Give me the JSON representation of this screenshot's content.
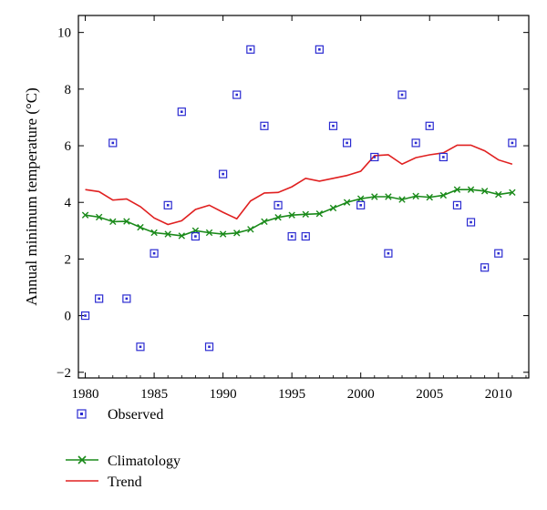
{
  "chart_data": {
    "type": "line",
    "title": "",
    "xlabel": "",
    "ylabel": "Annual minimum temperature (°C)",
    "xlim": [
      1979.5,
      2012.2
    ],
    "ylim": [
      -2.2,
      10.6
    ],
    "x_ticks": [
      1980,
      1985,
      1990,
      1995,
      2000,
      2005,
      2010
    ],
    "y_ticks": [
      -2,
      0,
      2,
      4,
      6,
      8,
      10
    ],
    "grid": false,
    "legend_position": "bottom-left",
    "colors": {
      "observed": "#2b2bd1",
      "climatology": "#1a8a1a",
      "trend": "#e02020"
    },
    "x": [
      1980,
      1981,
      1982,
      1983,
      1984,
      1985,
      1986,
      1987,
      1988,
      1989,
      1990,
      1991,
      1992,
      1993,
      1994,
      1995,
      1996,
      1997,
      1998,
      1999,
      2000,
      2001,
      2002,
      2003,
      2004,
      2005,
      2006,
      2007,
      2008,
      2009,
      2010,
      2011
    ],
    "series": [
      {
        "name": "Observed",
        "style": "square-markers",
        "values": [
          0.0,
          0.6,
          6.1,
          0.6,
          -1.1,
          2.2,
          3.9,
          7.2,
          2.8,
          -1.1,
          5.0,
          7.8,
          9.4,
          6.7,
          3.9,
          2.8,
          2.8,
          9.4,
          6.7,
          6.1,
          3.9,
          5.6,
          2.2,
          7.8,
          6.1,
          6.7,
          5.6,
          3.9,
          3.3,
          1.7,
          2.2,
          6.1
        ]
      },
      {
        "name": "Climatology",
        "style": "line-x-markers",
        "values": [
          3.55,
          3.48,
          3.32,
          3.33,
          3.12,
          2.93,
          2.88,
          2.82,
          3.0,
          2.93,
          2.88,
          2.92,
          3.05,
          3.32,
          3.47,
          3.55,
          3.58,
          3.6,
          3.8,
          4.0,
          4.13,
          4.2,
          4.2,
          4.1,
          4.22,
          4.18,
          4.25,
          4.45,
          4.45,
          4.4,
          4.28,
          4.35
        ]
      },
      {
        "name": "Trend",
        "style": "line",
        "values": [
          4.45,
          4.38,
          4.08,
          4.12,
          3.85,
          3.45,
          3.22,
          3.35,
          3.75,
          3.9,
          3.65,
          3.42,
          4.05,
          4.33,
          4.35,
          4.55,
          4.85,
          4.75,
          4.85,
          4.95,
          5.1,
          5.65,
          5.68,
          5.35,
          5.58,
          5.68,
          5.75,
          6.02,
          6.02,
          5.82,
          5.5,
          5.35
        ]
      }
    ]
  }
}
